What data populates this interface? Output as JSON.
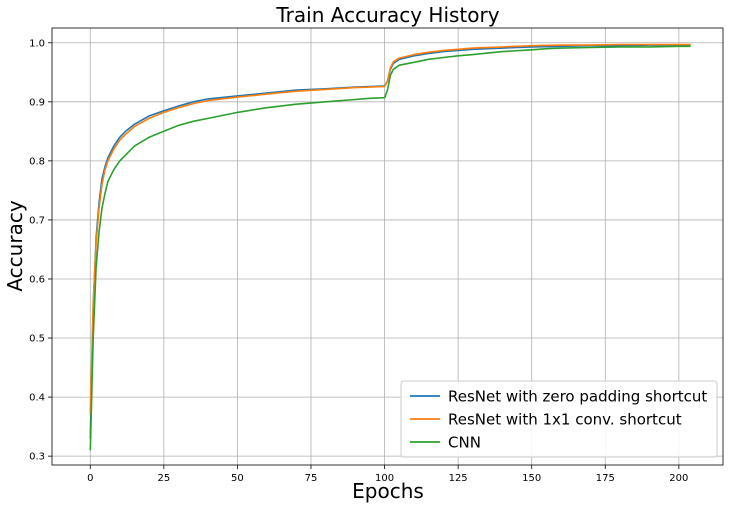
{
  "chart_data": {
    "type": "line",
    "title": "Train Accuracy History",
    "xlabel": "Epochs",
    "ylabel": "Accuracy",
    "xlim": [
      -13,
      215
    ],
    "ylim": [
      0.285,
      1.025
    ],
    "xticks": [
      0,
      25,
      50,
      75,
      100,
      125,
      150,
      175,
      200
    ],
    "xtick_labels": [
      "0",
      "25",
      "50",
      "75",
      "100",
      "125",
      "150",
      "175",
      "200"
    ],
    "yticks": [
      0.3,
      0.4,
      0.5,
      0.6,
      0.7,
      0.8,
      0.9,
      1.0
    ],
    "ytick_labels": [
      "0.3",
      "0.4",
      "0.5",
      "0.6",
      "0.7",
      "0.8",
      "0.9",
      "1.0"
    ],
    "grid": true,
    "legend_position": "lower-right",
    "series": [
      {
        "name": "ResNet with zero padding shortcut",
        "color": "#1f77b4",
        "x": [
          0,
          1,
          2,
          3,
          4,
          5,
          6,
          8,
          10,
          12,
          15,
          20,
          25,
          30,
          35,
          40,
          50,
          60,
          70,
          80,
          90,
          95,
          100,
          101,
          102,
          103,
          105,
          110,
          115,
          120,
          125,
          130,
          140,
          150,
          160,
          170,
          180,
          190,
          200,
          204
        ],
        "y": [
          0.33,
          0.55,
          0.67,
          0.73,
          0.77,
          0.79,
          0.805,
          0.825,
          0.84,
          0.85,
          0.862,
          0.876,
          0.885,
          0.893,
          0.9,
          0.905,
          0.91,
          0.915,
          0.92,
          0.922,
          0.925,
          0.926,
          0.927,
          0.935,
          0.955,
          0.965,
          0.972,
          0.978,
          0.982,
          0.985,
          0.987,
          0.989,
          0.991,
          0.993,
          0.994,
          0.995,
          0.995,
          0.996,
          0.996,
          0.996
        ]
      },
      {
        "name": "ResNet with 1x1 conv. shortcut",
        "color": "#ff7f0e",
        "x": [
          0,
          1,
          2,
          3,
          4,
          5,
          6,
          8,
          10,
          12,
          15,
          20,
          25,
          30,
          35,
          40,
          50,
          60,
          70,
          80,
          90,
          95,
          100,
          101,
          102,
          103,
          105,
          110,
          115,
          120,
          125,
          130,
          140,
          150,
          160,
          170,
          180,
          190,
          200,
          204
        ],
        "y": [
          0.37,
          0.56,
          0.66,
          0.72,
          0.76,
          0.785,
          0.8,
          0.82,
          0.835,
          0.845,
          0.858,
          0.872,
          0.882,
          0.89,
          0.897,
          0.902,
          0.908,
          0.913,
          0.918,
          0.921,
          0.924,
          0.925,
          0.926,
          0.935,
          0.958,
          0.968,
          0.974,
          0.98,
          0.984,
          0.987,
          0.989,
          0.991,
          0.993,
          0.995,
          0.996,
          0.996,
          0.997,
          0.997,
          0.997,
          0.997
        ]
      },
      {
        "name": "CNN",
        "color": "#2ca02c",
        "x": [
          0,
          1,
          2,
          3,
          4,
          5,
          6,
          8,
          10,
          12,
          15,
          20,
          25,
          30,
          35,
          40,
          50,
          60,
          70,
          80,
          90,
          95,
          100,
          101,
          102,
          103,
          105,
          110,
          115,
          120,
          125,
          130,
          140,
          150,
          155,
          160,
          170,
          180,
          190,
          200,
          204
        ],
        "y": [
          0.31,
          0.5,
          0.62,
          0.68,
          0.72,
          0.745,
          0.765,
          0.785,
          0.8,
          0.81,
          0.825,
          0.84,
          0.85,
          0.86,
          0.867,
          0.872,
          0.882,
          0.89,
          0.896,
          0.9,
          0.904,
          0.906,
          0.907,
          0.92,
          0.945,
          0.955,
          0.962,
          0.967,
          0.972,
          0.975,
          0.978,
          0.98,
          0.985,
          0.988,
          0.99,
          0.991,
          0.992,
          0.993,
          0.993,
          0.994,
          0.994
        ]
      }
    ]
  }
}
